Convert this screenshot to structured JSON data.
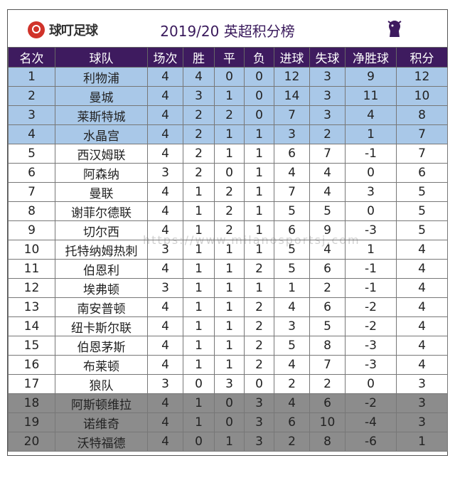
{
  "header": {
    "logo_text": "球叮足球",
    "title": "2019/20 英超积分榜"
  },
  "columns": [
    "名次",
    "球队",
    "场次",
    "胜",
    "平",
    "负",
    "进球",
    "失球",
    "净胜球",
    "积分"
  ],
  "rows": [
    {
      "rank": "1",
      "team": "利物浦",
      "played": "4",
      "won": "4",
      "drawn": "0",
      "lost": "0",
      "gf": "12",
      "ga": "3",
      "gd": "9",
      "pts": "12",
      "zone": "cl"
    },
    {
      "rank": "2",
      "team": "曼城",
      "played": "4",
      "won": "3",
      "drawn": "1",
      "lost": "0",
      "gf": "14",
      "ga": "3",
      "gd": "11",
      "pts": "10",
      "zone": "cl"
    },
    {
      "rank": "3",
      "team": "莱斯特城",
      "played": "4",
      "won": "2",
      "drawn": "2",
      "lost": "0",
      "gf": "7",
      "ga": "3",
      "gd": "4",
      "pts": "8",
      "zone": "cl"
    },
    {
      "rank": "4",
      "team": "水晶宫",
      "played": "4",
      "won": "2",
      "drawn": "1",
      "lost": "1",
      "gf": "3",
      "ga": "2",
      "gd": "1",
      "pts": "7",
      "zone": "cl"
    },
    {
      "rank": "5",
      "team": "西汉姆联",
      "played": "4",
      "won": "2",
      "drawn": "1",
      "lost": "1",
      "gf": "6",
      "ga": "7",
      "gd": "-1",
      "pts": "7",
      "zone": "mid"
    },
    {
      "rank": "6",
      "team": "阿森纳",
      "played": "3",
      "won": "2",
      "drawn": "0",
      "lost": "1",
      "gf": "4",
      "ga": "4",
      "gd": "0",
      "pts": "6",
      "zone": "mid"
    },
    {
      "rank": "7",
      "team": "曼联",
      "played": "4",
      "won": "1",
      "drawn": "2",
      "lost": "1",
      "gf": "7",
      "ga": "4",
      "gd": "3",
      "pts": "5",
      "zone": "mid"
    },
    {
      "rank": "8",
      "team": "谢菲尔德联",
      "played": "4",
      "won": "1",
      "drawn": "2",
      "lost": "1",
      "gf": "5",
      "ga": "5",
      "gd": "0",
      "pts": "5",
      "zone": "mid"
    },
    {
      "rank": "9",
      "team": "切尔西",
      "played": "4",
      "won": "1",
      "drawn": "2",
      "lost": "1",
      "gf": "6",
      "ga": "9",
      "gd": "-3",
      "pts": "5",
      "zone": "mid"
    },
    {
      "rank": "10",
      "team": "托特纳姆热刺",
      "played": "3",
      "won": "1",
      "drawn": "1",
      "lost": "1",
      "gf": "5",
      "ga": "4",
      "gd": "1",
      "pts": "4",
      "zone": "mid"
    },
    {
      "rank": "11",
      "team": "伯恩利",
      "played": "4",
      "won": "1",
      "drawn": "1",
      "lost": "2",
      "gf": "5",
      "ga": "6",
      "gd": "-1",
      "pts": "4",
      "zone": "mid"
    },
    {
      "rank": "12",
      "team": "埃弗顿",
      "played": "3",
      "won": "1",
      "drawn": "1",
      "lost": "1",
      "gf": "1",
      "ga": "2",
      "gd": "-1",
      "pts": "4",
      "zone": "mid"
    },
    {
      "rank": "13",
      "team": "南安普顿",
      "played": "4",
      "won": "1",
      "drawn": "1",
      "lost": "2",
      "gf": "4",
      "ga": "6",
      "gd": "-2",
      "pts": "4",
      "zone": "mid"
    },
    {
      "rank": "14",
      "team": "纽卡斯尔联",
      "played": "4",
      "won": "1",
      "drawn": "1",
      "lost": "2",
      "gf": "3",
      "ga": "5",
      "gd": "-2",
      "pts": "4",
      "zone": "mid"
    },
    {
      "rank": "15",
      "team": "伯恩茅斯",
      "played": "4",
      "won": "1",
      "drawn": "1",
      "lost": "2",
      "gf": "5",
      "ga": "8",
      "gd": "-3",
      "pts": "4",
      "zone": "mid"
    },
    {
      "rank": "16",
      "team": "布莱顿",
      "played": "4",
      "won": "1",
      "drawn": "1",
      "lost": "2",
      "gf": "4",
      "ga": "7",
      "gd": "-3",
      "pts": "4",
      "zone": "mid"
    },
    {
      "rank": "17",
      "team": "狼队",
      "played": "3",
      "won": "0",
      "drawn": "3",
      "lost": "0",
      "gf": "2",
      "ga": "2",
      "gd": "0",
      "pts": "3",
      "zone": "mid"
    },
    {
      "rank": "18",
      "team": "阿斯顿维拉",
      "played": "4",
      "won": "1",
      "drawn": "0",
      "lost": "3",
      "gf": "4",
      "ga": "6",
      "gd": "-2",
      "pts": "3",
      "zone": "rel"
    },
    {
      "rank": "19",
      "team": "诺维奇",
      "played": "4",
      "won": "1",
      "drawn": "0",
      "lost": "3",
      "gf": "6",
      "ga": "10",
      "gd": "-4",
      "pts": "3",
      "zone": "rel"
    },
    {
      "rank": "20",
      "team": "沃特福德",
      "played": "4",
      "won": "0",
      "drawn": "1",
      "lost": "3",
      "gf": "2",
      "ga": "8",
      "gd": "-6",
      "pts": "1",
      "zone": "rel"
    }
  ],
  "watermark": "https://www.milanosportsj.com",
  "colors": {
    "header_bg": "#3e1b5f",
    "cl_zone": "#a9c8e8",
    "relegation_zone": "#8c8c8c",
    "logo_red": "#d0332a"
  },
  "icons": [
    "premier-league-lion-icon",
    "qiuding-logo-icon"
  ]
}
